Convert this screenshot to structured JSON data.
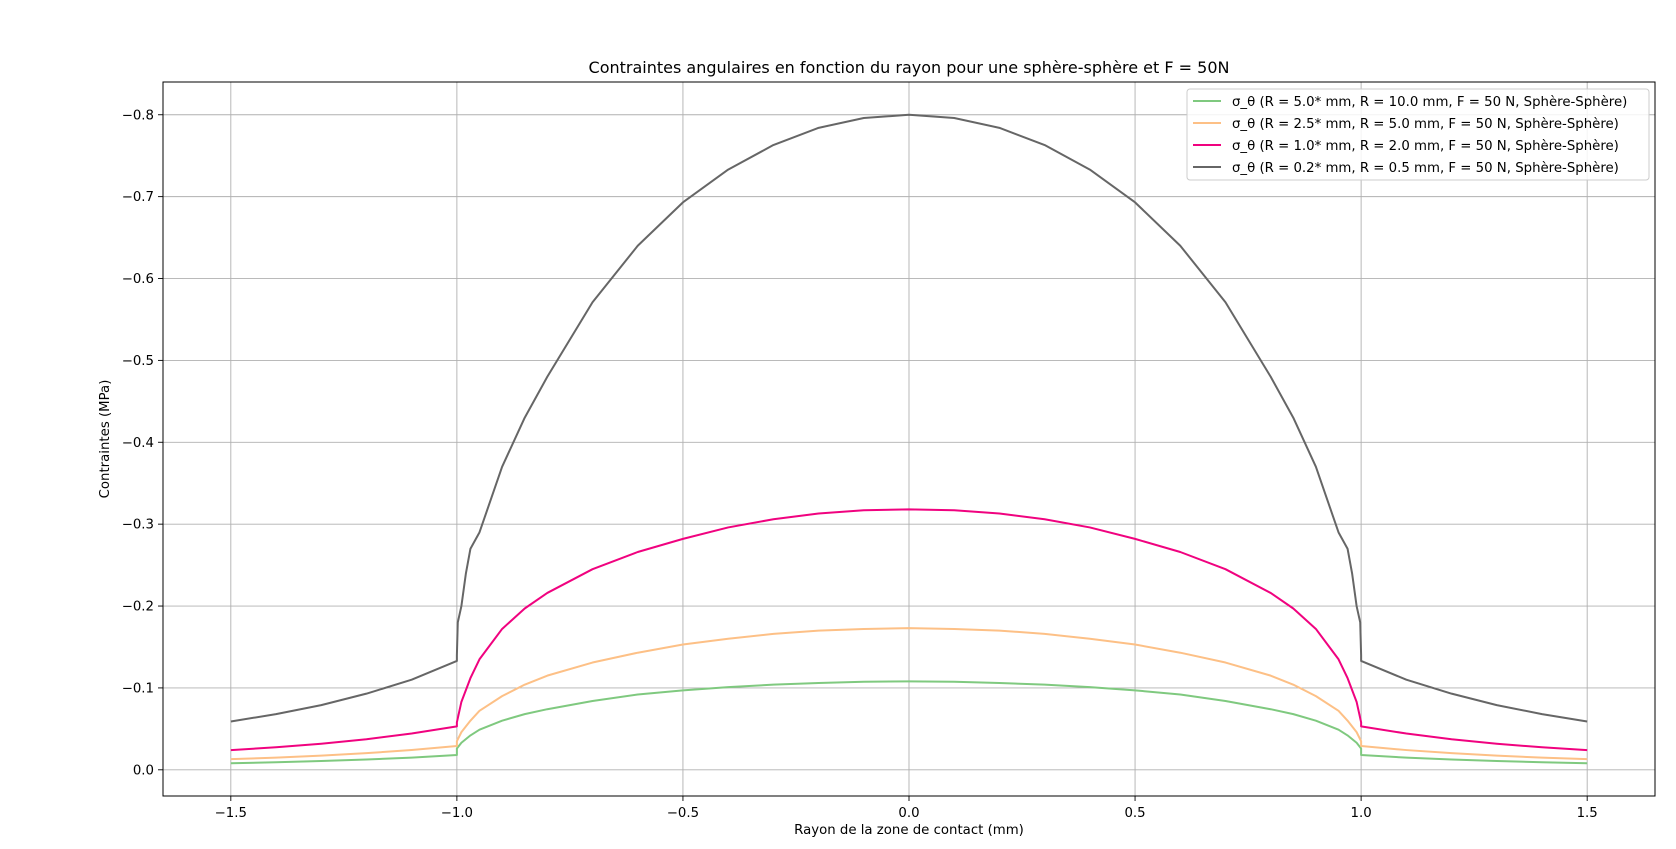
{
  "chart_data": {
    "type": "line",
    "title": "Contraintes angulaires en fonction du rayon pour une sphère-sphère et F = 50N",
    "xlabel": "Rayon de la zone de contact (mm)",
    "ylabel": "Contraintes (MPa)",
    "xlim": [
      -1.65,
      1.65
    ],
    "ylim": [
      0.032,
      -0.84
    ],
    "y_inverted": true,
    "grid": true,
    "legend_position": "top-right",
    "x_ticks": [
      {
        "value": -1.5,
        "label": "−1.5"
      },
      {
        "value": -1.0,
        "label": "−1.0"
      },
      {
        "value": -0.5,
        "label": "−0.5"
      },
      {
        "value": 0.0,
        "label": "0.0"
      },
      {
        "value": 0.5,
        "label": "0.5"
      },
      {
        "value": 1.0,
        "label": "1.0"
      },
      {
        "value": 1.5,
        "label": "1.5"
      }
    ],
    "y_ticks": [
      {
        "value": -0.8,
        "label": "−0.8"
      },
      {
        "value": -0.7,
        "label": "−0.7"
      },
      {
        "value": -0.6,
        "label": "−0.6"
      },
      {
        "value": -0.5,
        "label": "−0.5"
      },
      {
        "value": -0.4,
        "label": "−0.4"
      },
      {
        "value": -0.3,
        "label": "−0.3"
      },
      {
        "value": -0.2,
        "label": "−0.2"
      },
      {
        "value": -0.1,
        "label": "−0.1"
      },
      {
        "value": 0.0,
        "label": "0.0"
      }
    ],
    "series": [
      {
        "name": "σ_θ (R = 5.0* mm, R = 10.0 mm, F = 50 N, Sphère-Sphère)",
        "color": "#7fc97f",
        "x": [
          -1.5,
          -1.4,
          -1.3,
          -1.2,
          -1.1,
          -1.0,
          -1.0,
          -0.99,
          -0.97,
          -0.95,
          -0.9,
          -0.85,
          -0.8,
          -0.7,
          -0.6,
          -0.5,
          -0.4,
          -0.3,
          -0.2,
          -0.1,
          0.0,
          0.1,
          0.2,
          0.3,
          0.4,
          0.5,
          0.6,
          0.7,
          0.8,
          0.85,
          0.9,
          0.95,
          0.97,
          0.99,
          1.0,
          1.0,
          1.1,
          1.2,
          1.3,
          1.4,
          1.5
        ],
        "y": [
          -0.008,
          -0.0092,
          -0.0107,
          -0.0125,
          -0.0149,
          -0.018,
          -0.026,
          -0.033,
          -0.042,
          -0.049,
          -0.06,
          -0.068,
          -0.074,
          -0.084,
          -0.092,
          -0.097,
          -0.101,
          -0.104,
          -0.106,
          -0.1075,
          -0.108,
          -0.1075,
          -0.106,
          -0.104,
          -0.101,
          -0.097,
          -0.092,
          -0.084,
          -0.074,
          -0.068,
          -0.06,
          -0.049,
          -0.042,
          -0.033,
          -0.026,
          -0.018,
          -0.0149,
          -0.0125,
          -0.0107,
          -0.0092,
          -0.008
        ]
      },
      {
        "name": "σ_θ (R = 2.5* mm, R = 5.0 mm, F = 50 N, Sphère-Sphère)",
        "color": "#fdc086",
        "x": [
          -1.5,
          -1.4,
          -1.3,
          -1.2,
          -1.1,
          -1.0,
          -1.0,
          -0.99,
          -0.97,
          -0.95,
          -0.9,
          -0.85,
          -0.8,
          -0.7,
          -0.6,
          -0.5,
          -0.4,
          -0.3,
          -0.2,
          -0.1,
          0.0,
          0.1,
          0.2,
          0.3,
          0.4,
          0.5,
          0.6,
          0.7,
          0.8,
          0.85,
          0.9,
          0.95,
          0.97,
          0.99,
          1.0,
          1.0,
          1.1,
          1.2,
          1.3,
          1.4,
          1.5
        ],
        "y": [
          -0.013,
          -0.0149,
          -0.0173,
          -0.0203,
          -0.0241,
          -0.029,
          -0.035,
          -0.046,
          -0.06,
          -0.072,
          -0.09,
          -0.104,
          -0.115,
          -0.131,
          -0.143,
          -0.153,
          -0.16,
          -0.166,
          -0.17,
          -0.172,
          -0.173,
          -0.172,
          -0.17,
          -0.166,
          -0.16,
          -0.153,
          -0.143,
          -0.131,
          -0.115,
          -0.104,
          -0.09,
          -0.072,
          -0.06,
          -0.046,
          -0.035,
          -0.029,
          -0.0241,
          -0.0203,
          -0.0173,
          -0.0149,
          -0.013
        ]
      },
      {
        "name": "σ_θ (R = 1.0* mm, R = 2.0 mm, F = 50 N, Sphère-Sphère)",
        "color": "#f0027f",
        "x": [
          -1.5,
          -1.4,
          -1.3,
          -1.2,
          -1.1,
          -1.0,
          -1.0,
          -0.99,
          -0.97,
          -0.95,
          -0.9,
          -0.85,
          -0.8,
          -0.7,
          -0.6,
          -0.5,
          -0.4,
          -0.3,
          -0.2,
          -0.1,
          0.0,
          0.1,
          0.2,
          0.3,
          0.4,
          0.5,
          0.6,
          0.7,
          0.8,
          0.85,
          0.9,
          0.95,
          0.97,
          0.99,
          1.0,
          1.0,
          1.1,
          1.2,
          1.3,
          1.4,
          1.5
        ],
        "y": [
          -0.024,
          -0.0275,
          -0.0318,
          -0.0373,
          -0.0443,
          -0.053,
          -0.058,
          -0.083,
          -0.112,
          -0.135,
          -0.172,
          -0.197,
          -0.216,
          -0.245,
          -0.266,
          -0.282,
          -0.296,
          -0.306,
          -0.313,
          -0.317,
          -0.318,
          -0.317,
          -0.313,
          -0.306,
          -0.296,
          -0.282,
          -0.266,
          -0.245,
          -0.216,
          -0.197,
          -0.172,
          -0.135,
          -0.112,
          -0.083,
          -0.058,
          -0.053,
          -0.0443,
          -0.0373,
          -0.0318,
          -0.0275,
          -0.024
        ]
      },
      {
        "name": "σ_θ (R = 0.2* mm, R = 0.5 mm, F = 50 N, Sphère-Sphère)",
        "color": "#666666",
        "x": [
          -1.5,
          -1.4,
          -1.3,
          -1.2,
          -1.1,
          -1.0,
          -1.0,
          -0.998,
          -0.99,
          -0.98,
          -0.97,
          -0.95,
          -0.9,
          -0.85,
          -0.8,
          -0.7,
          -0.6,
          -0.5,
          -0.4,
          -0.3,
          -0.2,
          -0.1,
          0.0,
          0.1,
          0.2,
          0.3,
          0.4,
          0.5,
          0.6,
          0.7,
          0.8,
          0.85,
          0.9,
          0.95,
          0.97,
          0.98,
          0.99,
          0.998,
          1.0,
          1.0,
          1.1,
          1.2,
          1.3,
          1.4,
          1.5
        ],
        "y": [
          -0.059,
          -0.068,
          -0.079,
          -0.093,
          -0.11,
          -0.133,
          -0.14,
          -0.18,
          -0.2,
          -0.24,
          -0.27,
          -0.29,
          -0.37,
          -0.43,
          -0.48,
          -0.571,
          -0.64,
          -0.693,
          -0.733,
          -0.763,
          -0.784,
          -0.796,
          -0.8,
          -0.796,
          -0.784,
          -0.763,
          -0.733,
          -0.693,
          -0.64,
          -0.571,
          -0.48,
          -0.43,
          -0.37,
          -0.29,
          -0.27,
          -0.24,
          -0.2,
          -0.18,
          -0.14,
          -0.133,
          -0.11,
          -0.093,
          -0.079,
          -0.068,
          -0.059
        ]
      }
    ]
  }
}
